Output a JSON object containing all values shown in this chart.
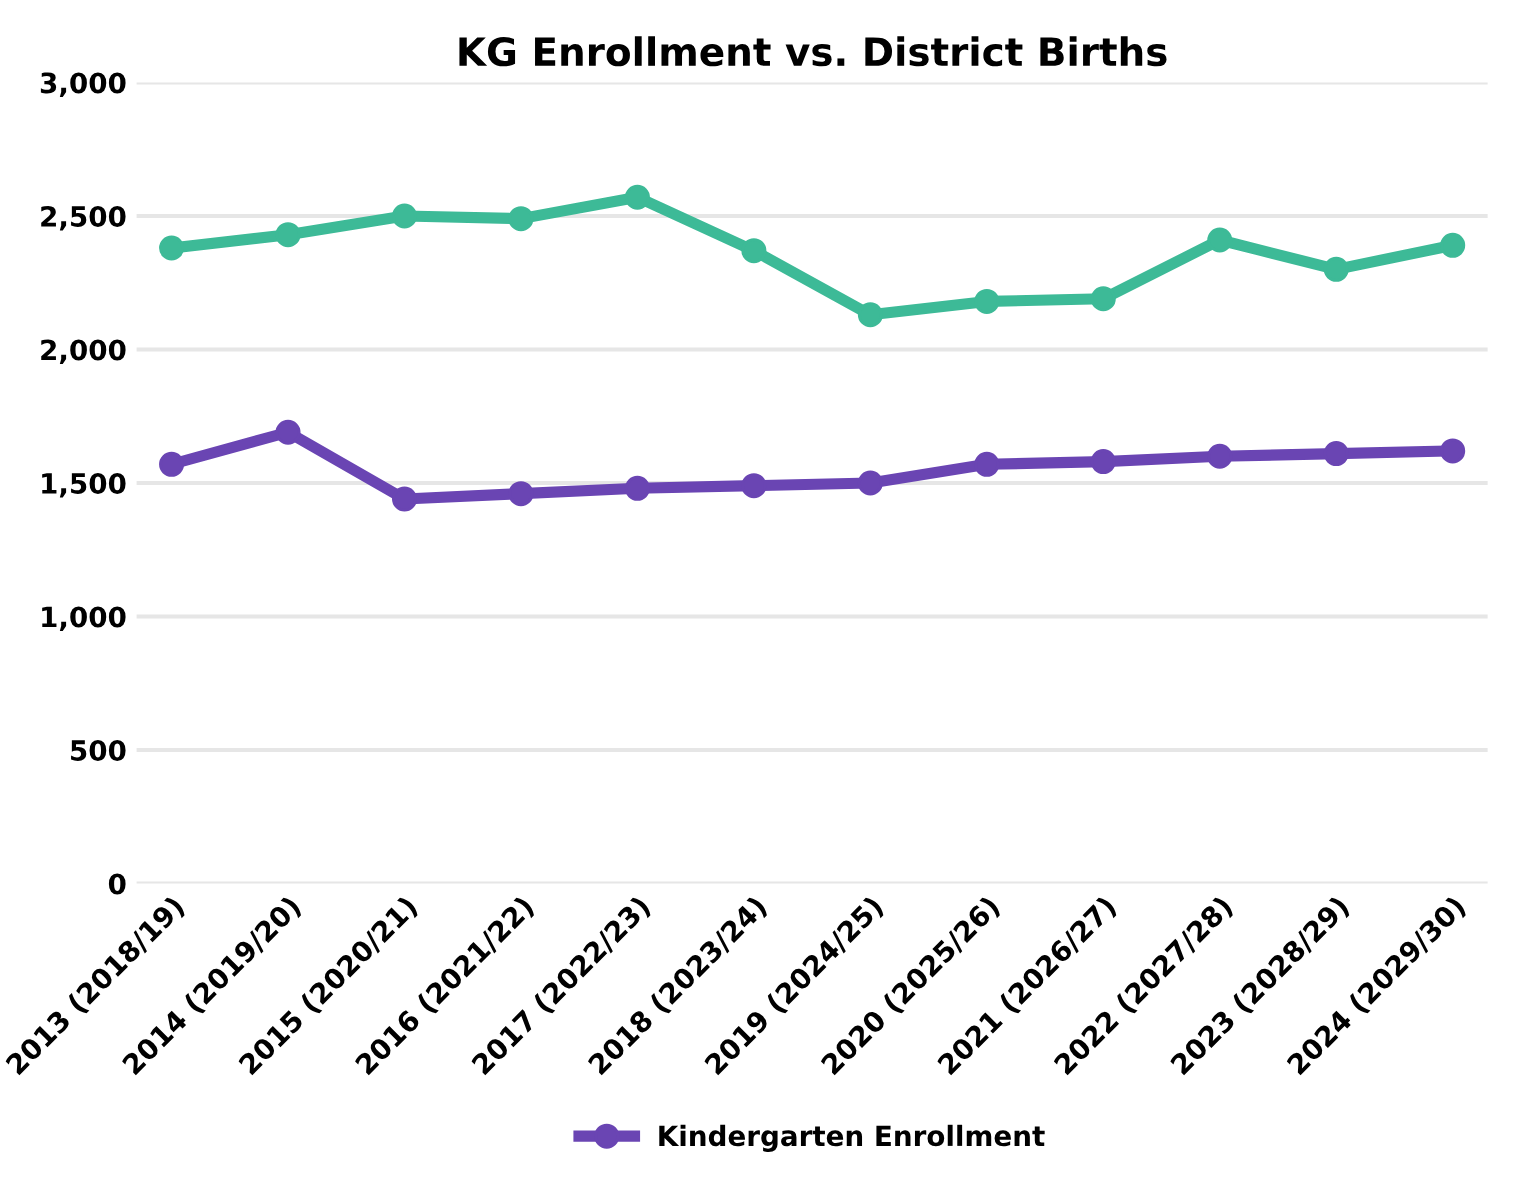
{
  "chart_data": {
    "type": "line",
    "title": "KG Enrollment vs. District Births",
    "categories": [
      "2013 (2018/19)",
      "2014 (2019/20)",
      "2015 (2020/21)",
      "2016 (2021/22)",
      "2017 (2022/23)",
      "2018 (2023/24)",
      "2019 (2024/25)",
      "2020 (2025/26)",
      "2021 (2026/27)",
      "2022 (2027/28)",
      "2023 (2028/29)",
      "2024 (2029/30)"
    ],
    "series": [
      {
        "color": "#3dba97",
        "values": [
          2380,
          2430,
          2500,
          2490,
          2570,
          2370,
          2130,
          2180,
          2190,
          2410,
          2300,
          2390
        ]
      },
      {
        "name": "Kindergarten Enrollment",
        "color": "#6a45b3",
        "values": [
          1570,
          1690,
          1440,
          1460,
          1480,
          1490,
          1500,
          1570,
          1580,
          1600,
          1610,
          1620
        ]
      }
    ],
    "ylim": [
      0,
      3000
    ],
    "yticks": [
      {
        "value": 0,
        "label": "0"
      },
      {
        "value": 500,
        "label": "500"
      },
      {
        "value": 1000,
        "label": "1,000"
      },
      {
        "value": 1500,
        "label": "1,500"
      },
      {
        "value": 2000,
        "label": "2,000"
      },
      {
        "value": 2500,
        "label": "2,500"
      },
      {
        "value": 3000,
        "label": "3,000"
      }
    ],
    "grid": "y",
    "legend": "bottom",
    "marker": "circle",
    "line_style": "solid"
  }
}
